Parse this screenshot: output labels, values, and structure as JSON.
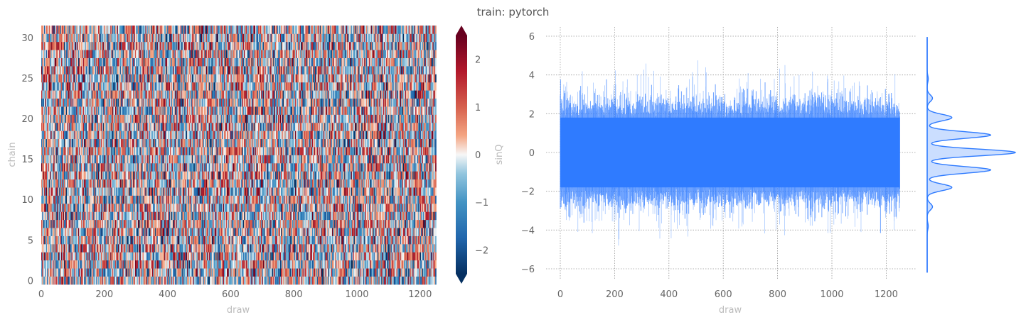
{
  "suptitle": "train: pytorch",
  "colors": {
    "text": "#666666",
    "axis_label": "#bbbbbb",
    "trace": "#2f7bff",
    "grid": "#999999",
    "cmap_low": "#053061",
    "cmap_mid": "#f7f7f7",
    "cmap_high": "#67001f"
  },
  "chart_data": [
    {
      "type": "heatmap",
      "xlabel": "draw",
      "ylabel": "chain",
      "x_range": [
        0,
        1250
      ],
      "y_range": [
        0,
        31
      ],
      "xticks": [
        0,
        200,
        400,
        600,
        800,
        1000,
        1200
      ],
      "yticks": [
        0,
        5,
        10,
        15,
        20,
        25,
        30
      ],
      "rows": 32,
      "draws": 1250,
      "colorbar": {
        "label": "sinQ",
        "range": [
          -2.5,
          2.5
        ],
        "ticks": [
          -2,
          -1,
          0,
          1,
          2
        ],
        "extend": "both",
        "colormap": "RdBu_r"
      }
    },
    {
      "type": "line",
      "xlabel": "draw",
      "ylabel": "",
      "x_range": [
        0,
        1250
      ],
      "ylim": [
        -6.5,
        6.5
      ],
      "xticks": [
        0,
        200,
        400,
        600,
        800,
        1000,
        1200
      ],
      "yticks": [
        -6,
        -4,
        -2,
        0,
        2,
        4,
        6
      ],
      "grid": true,
      "series": [
        {
          "description_only": true,
          "core_band": [
            -1.8,
            1.8
          ],
          "envelope_typical": [
            -3.0,
            3.0
          ],
          "extremes": [
            -5.2,
            5.2
          ]
        }
      ]
    },
    {
      "type": "area",
      "orientation": "vertical density (KDE) of trace values",
      "y_range": [
        -6.2,
        5.9
      ],
      "peaks": [
        {
          "y": 0,
          "density": 1.0
        },
        {
          "y": 0.9,
          "density": 0.72
        },
        {
          "y": -0.9,
          "density": 0.72
        },
        {
          "y": 1.8,
          "density": 0.28
        },
        {
          "y": -1.8,
          "density": 0.28
        },
        {
          "y": 2.8,
          "density": 0.06
        },
        {
          "y": -2.8,
          "density": 0.06
        },
        {
          "y": 3.8,
          "density": 0.012
        },
        {
          "y": -3.8,
          "density": 0.012
        }
      ]
    }
  ]
}
